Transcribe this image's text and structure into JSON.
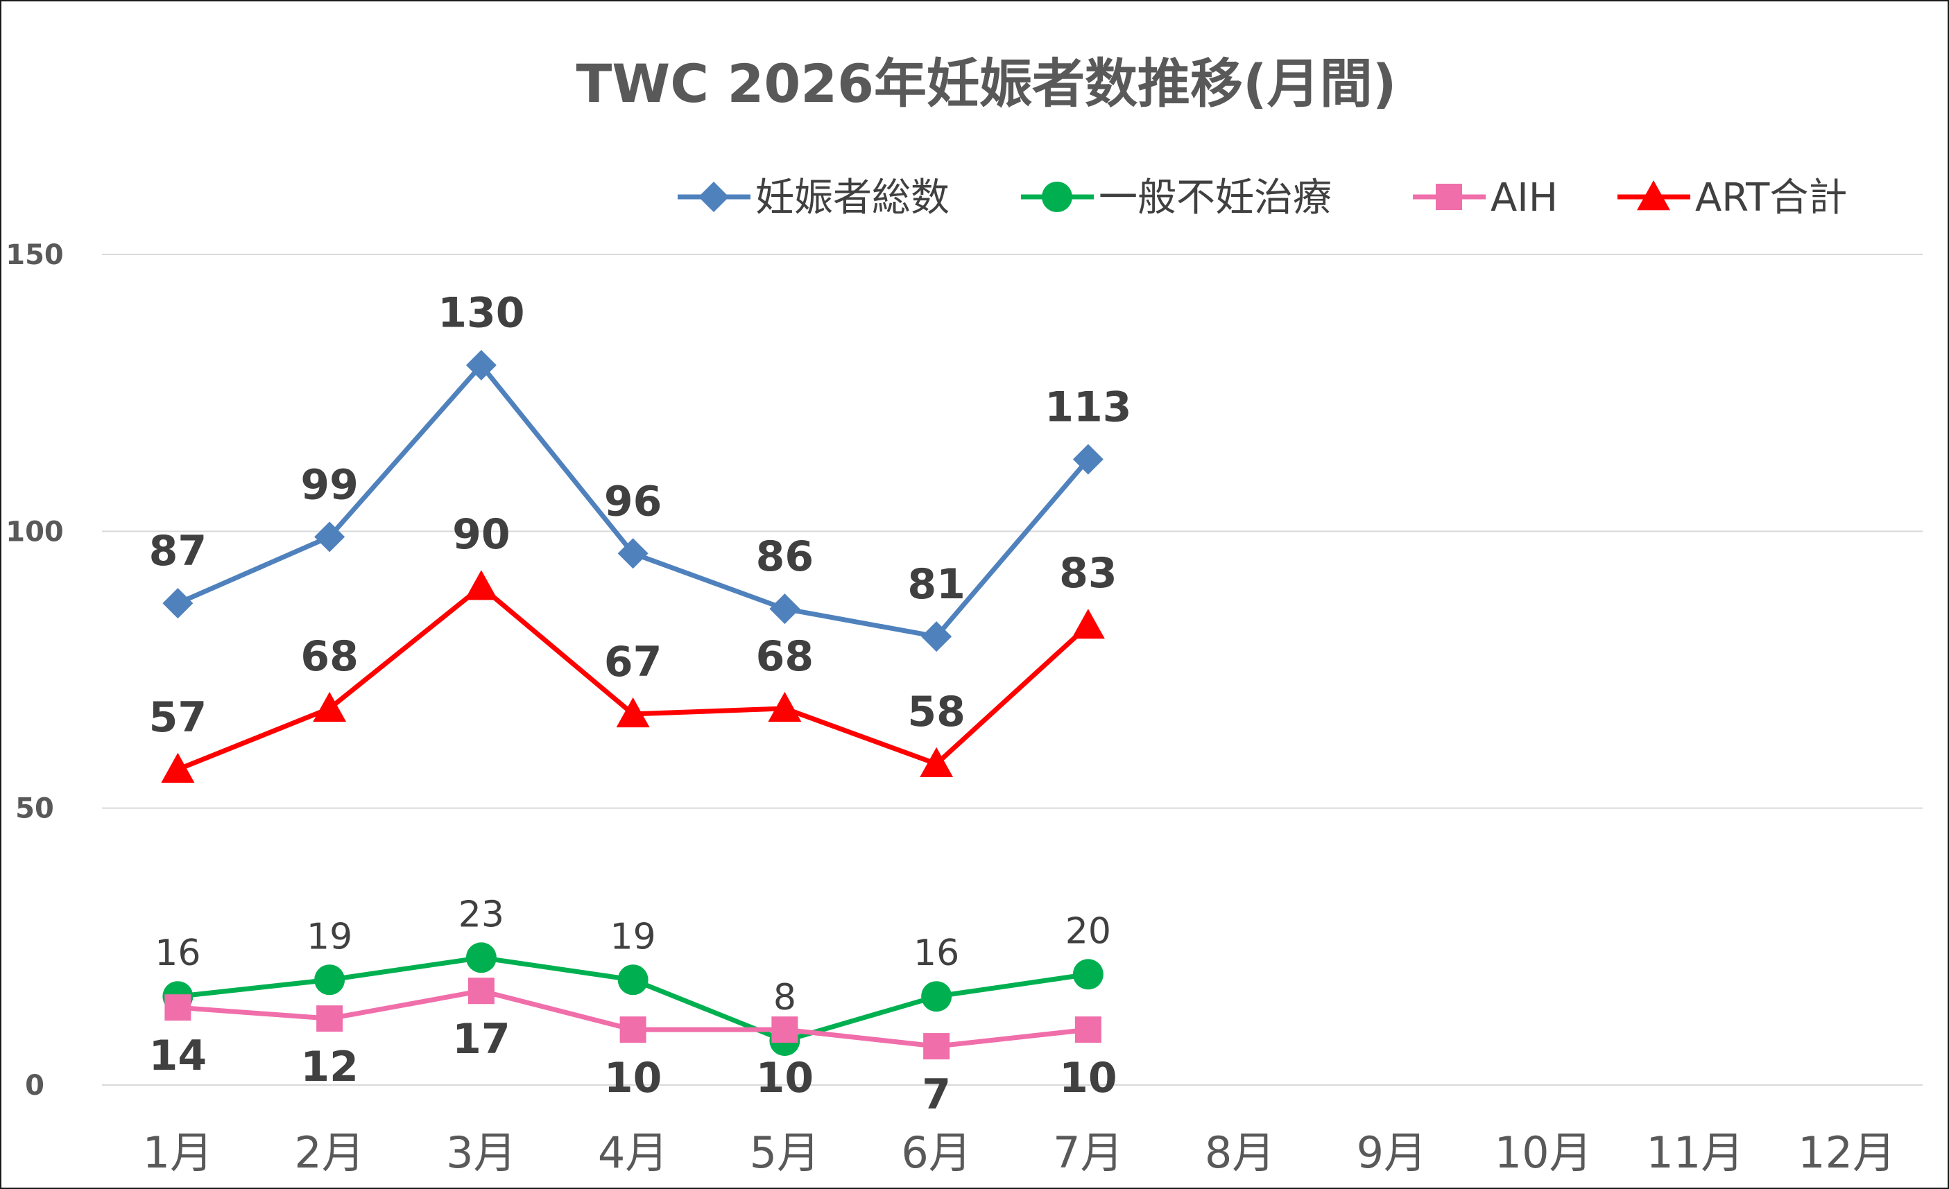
{
  "chart_data": {
    "type": "line",
    "title": "TWC 2026年妊娠者数推移(月間)",
    "categories": [
      "1月",
      "2月",
      "3月",
      "4月",
      "5月",
      "6月",
      "7月",
      "8月",
      "9月",
      "10月",
      "11月",
      "12月"
    ],
    "ylim": [
      0,
      150
    ],
    "yticks": [
      0,
      50,
      100,
      150
    ],
    "grid": true,
    "legend_position": "top-right",
    "series": [
      {
        "name": "妊娠者総数",
        "color": "#4F81BD",
        "marker": "diamond",
        "label_style": "bold",
        "label_pos": "above",
        "values": [
          87,
          99,
          130,
          96,
          86,
          81,
          113,
          null,
          null,
          null,
          null,
          null
        ]
      },
      {
        "name": "一般不妊治療",
        "color": "#00B050",
        "marker": "circle",
        "label_style": "plain",
        "label_pos": "above",
        "values": [
          16,
          19,
          23,
          19,
          8,
          16,
          20,
          null,
          null,
          null,
          null,
          null
        ]
      },
      {
        "name": "AIH",
        "color": "#F06EAA",
        "marker": "square",
        "label_style": "bold",
        "label_pos": "below",
        "values": [
          14,
          12,
          17,
          10,
          10,
          7,
          10,
          null,
          null,
          null,
          null,
          null
        ]
      },
      {
        "name": "ART合計",
        "color": "#FF0000",
        "marker": "triangle",
        "label_style": "bold",
        "label_pos": "above",
        "values": [
          57,
          68,
          90,
          67,
          68,
          58,
          83,
          null,
          null,
          null,
          null,
          null
        ]
      }
    ]
  }
}
